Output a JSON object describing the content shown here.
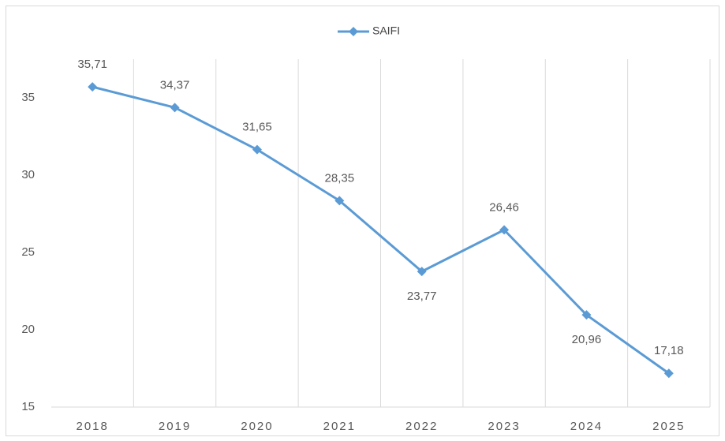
{
  "chart_data": {
    "type": "line",
    "categories": [
      "2018",
      "2019",
      "2020",
      "2021",
      "2022",
      "2023",
      "2024",
      "2025"
    ],
    "series": [
      {
        "name": "SAIFI",
        "color": "#5b9bd5",
        "values": [
          35.71,
          34.37,
          31.65,
          28.35,
          23.77,
          26.46,
          20.96,
          17.18
        ],
        "value_labels": [
          "35,71",
          "34,37",
          "31,65",
          "28,35",
          "23,77",
          "26,46",
          "20,96",
          "17,18"
        ]
      }
    ],
    "ylim": [
      15,
      37.5
    ],
    "yticks": [
      15,
      20,
      25,
      30,
      35
    ],
    "grid": "x",
    "legend": "top"
  }
}
